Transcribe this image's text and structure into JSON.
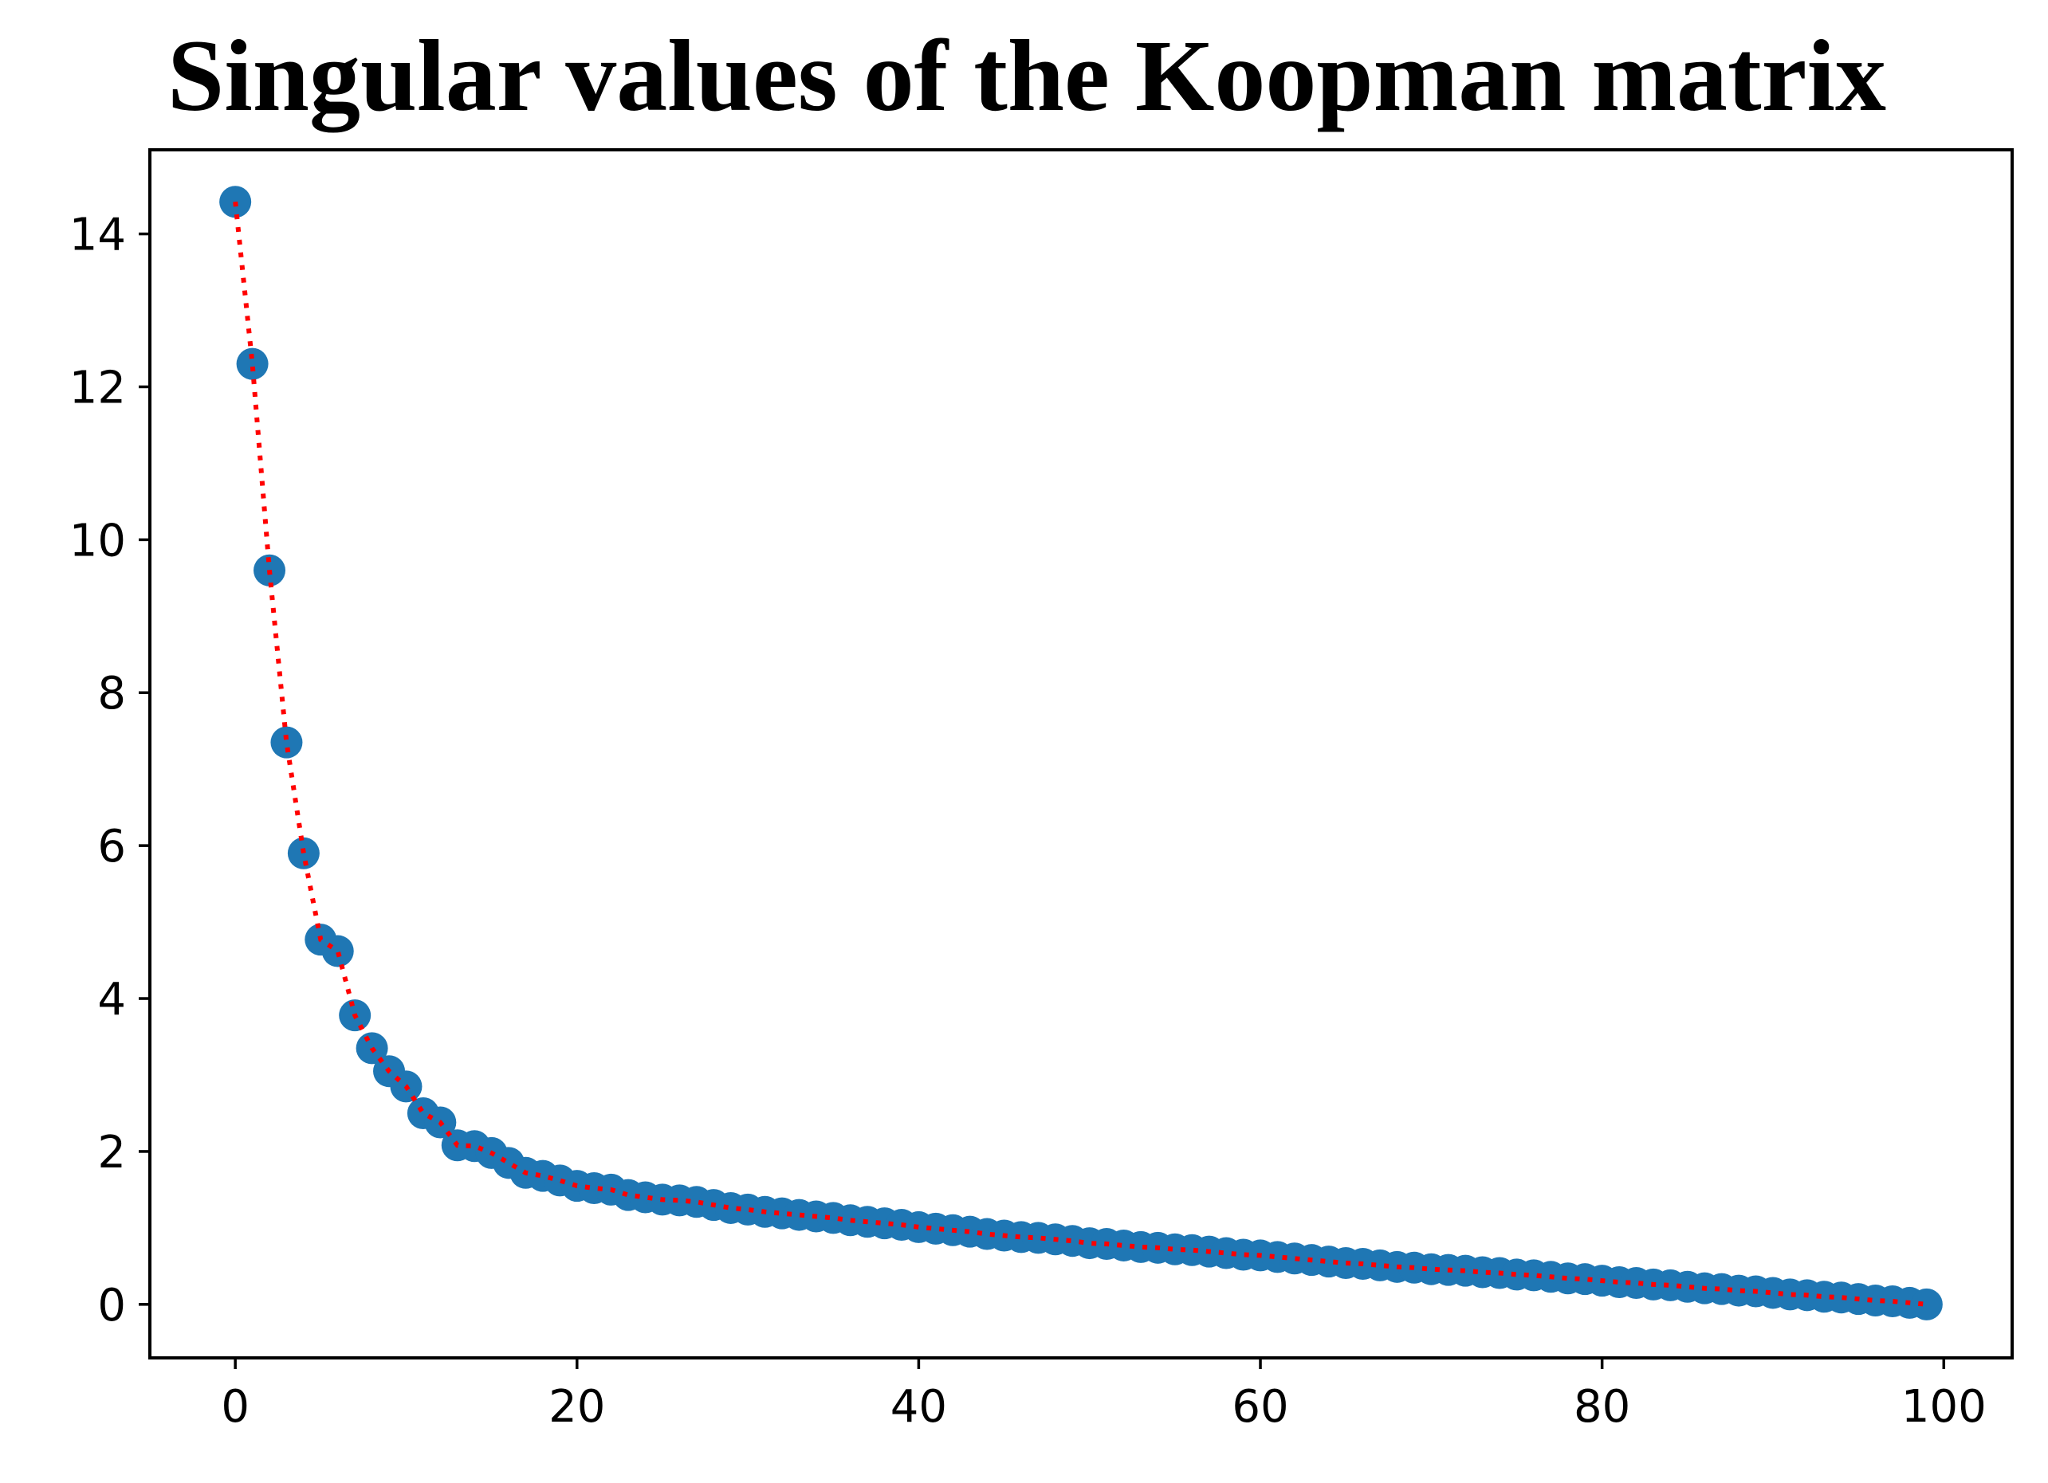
{
  "chart_data": {
    "type": "scatter",
    "title": "Singular values of the Koopman matrix",
    "xlabel": "",
    "ylabel": "",
    "xlim": [
      -5,
      104
    ],
    "ylim": [
      -0.7,
      15.1
    ],
    "xticks": [
      0,
      20,
      40,
      60,
      80,
      100
    ],
    "yticks": [
      0,
      2,
      4,
      6,
      8,
      10,
      12,
      14
    ],
    "grid": false,
    "legend": "none",
    "marker_color": "#1f77b4",
    "line_color": "#ff0000",
    "line_style": "dotted",
    "x": [
      0,
      1,
      2,
      3,
      4,
      5,
      6,
      7,
      8,
      9,
      10,
      11,
      12,
      13,
      14,
      15,
      16,
      17,
      18,
      19,
      20,
      21,
      22,
      23,
      24,
      25,
      26,
      27,
      28,
      29,
      30,
      31,
      32,
      33,
      34,
      35,
      36,
      37,
      38,
      39,
      40,
      41,
      42,
      43,
      44,
      45,
      46,
      47,
      48,
      49,
      50,
      51,
      52,
      53,
      54,
      55,
      56,
      57,
      58,
      59,
      60,
      61,
      62,
      63,
      64,
      65,
      66,
      67,
      68,
      69,
      70,
      71,
      72,
      73,
      74,
      75,
      76,
      77,
      78,
      79,
      80,
      81,
      82,
      83,
      84,
      85,
      86,
      87,
      88,
      89,
      90,
      91,
      92,
      93,
      94,
      95,
      96,
      97,
      98,
      99
    ],
    "values": [
      14.42,
      12.3,
      9.6,
      7.35,
      5.9,
      4.77,
      4.62,
      3.78,
      3.35,
      3.05,
      2.85,
      2.5,
      2.38,
      2.08,
      2.07,
      1.98,
      1.85,
      1.72,
      1.68,
      1.62,
      1.55,
      1.52,
      1.5,
      1.43,
      1.4,
      1.37,
      1.36,
      1.34,
      1.3,
      1.26,
      1.24,
      1.21,
      1.19,
      1.17,
      1.15,
      1.13,
      1.1,
      1.08,
      1.06,
      1.04,
      1.01,
      0.99,
      0.97,
      0.95,
      0.92,
      0.9,
      0.88,
      0.87,
      0.85,
      0.83,
      0.8,
      0.79,
      0.77,
      0.75,
      0.74,
      0.72,
      0.71,
      0.69,
      0.67,
      0.65,
      0.64,
      0.62,
      0.6,
      0.58,
      0.56,
      0.54,
      0.53,
      0.51,
      0.49,
      0.48,
      0.46,
      0.45,
      0.44,
      0.42,
      0.41,
      0.39,
      0.38,
      0.36,
      0.34,
      0.33,
      0.31,
      0.29,
      0.28,
      0.26,
      0.25,
      0.23,
      0.21,
      0.2,
      0.18,
      0.17,
      0.15,
      0.13,
      0.12,
      0.1,
      0.09,
      0.07,
      0.05,
      0.04,
      0.02,
      0.0
    ]
  }
}
